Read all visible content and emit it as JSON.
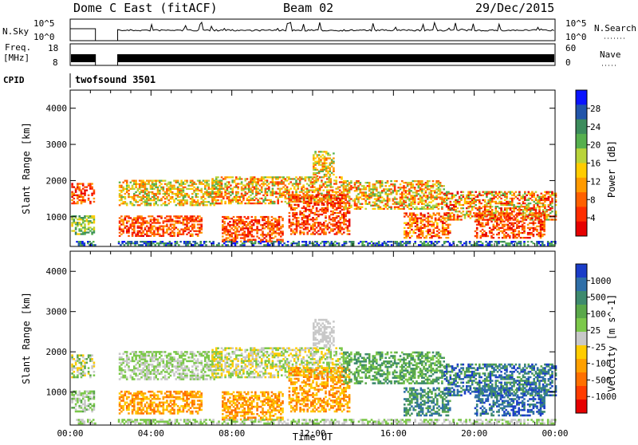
{
  "header": {
    "station": "Dome C East (fitACF)",
    "beam": "Beam 02",
    "date": "29/Dec/2015"
  },
  "status_panels": {
    "nsky": {
      "left_label": "N.Sky",
      "left_ticks": [
        "10^5",
        "10^0"
      ],
      "right_label": "N.Search",
      "right_ticks": [
        "10^5",
        "10^0"
      ]
    },
    "freq": {
      "left_label_1": "Freq.",
      "left_label_2": "[MHz]",
      "left_ticks": [
        "18",
        "8"
      ],
      "right_label": "Nave",
      "right_ticks": [
        "60",
        "0"
      ]
    },
    "cpid": {
      "label": "CPID",
      "program": "twofsound 3501"
    },
    "data_gap_hours": [
      1.25,
      2.35
    ]
  },
  "chart_data": [
    {
      "type": "heatmap",
      "title": "",
      "xlabel": "Time UT",
      "ylabel": "Slant Range [km]",
      "xlim": [
        0,
        24
      ],
      "ylim": [
        180,
        4500
      ],
      "x_ticks": [
        "00:00",
        "04:00",
        "08:00",
        "12:00",
        "16:00",
        "20:00",
        "00:00"
      ],
      "y_ticks": [
        1000,
        2000,
        3000,
        4000
      ],
      "colorbar": {
        "label": "Power [dB]",
        "ticks": [
          "4",
          "8",
          "12",
          "16",
          "20",
          "24",
          "28"
        ],
        "colors": [
          "#0a14ff",
          "#2255aa",
          "#3c8c5c",
          "#56b04e",
          "#b9d43a",
          "#ffcc00",
          "#ff9a00",
          "#ff6000",
          "#ff2d00",
          "#e60000"
        ]
      }
    },
    {
      "type": "heatmap",
      "title": "",
      "xlabel": "Time UT",
      "ylabel": "Slant Range [km]",
      "xlim": [
        0,
        24
      ],
      "ylim": [
        180,
        4500
      ],
      "x_ticks": [
        "00:00",
        "04:00",
        "08:00",
        "12:00",
        "16:00",
        "20:00",
        "00:00"
      ],
      "y_ticks": [
        1000,
        2000,
        3000,
        4000
      ],
      "colorbar": {
        "label": "Velocity [m s^-1]",
        "ticks": [
          "1000",
          "500",
          "100",
          "25",
          "-25",
          "-100",
          "-500",
          "-1000"
        ],
        "colors": [
          "#1a3cc8",
          "#2f6fa8",
          "#3e8a6e",
          "#5aa84a",
          "#7cc84a",
          "#c8c8c8",
          "#ffcc00",
          "#ffa000",
          "#ff7000",
          "#ff3c00",
          "#e60000"
        ]
      }
    }
  ]
}
